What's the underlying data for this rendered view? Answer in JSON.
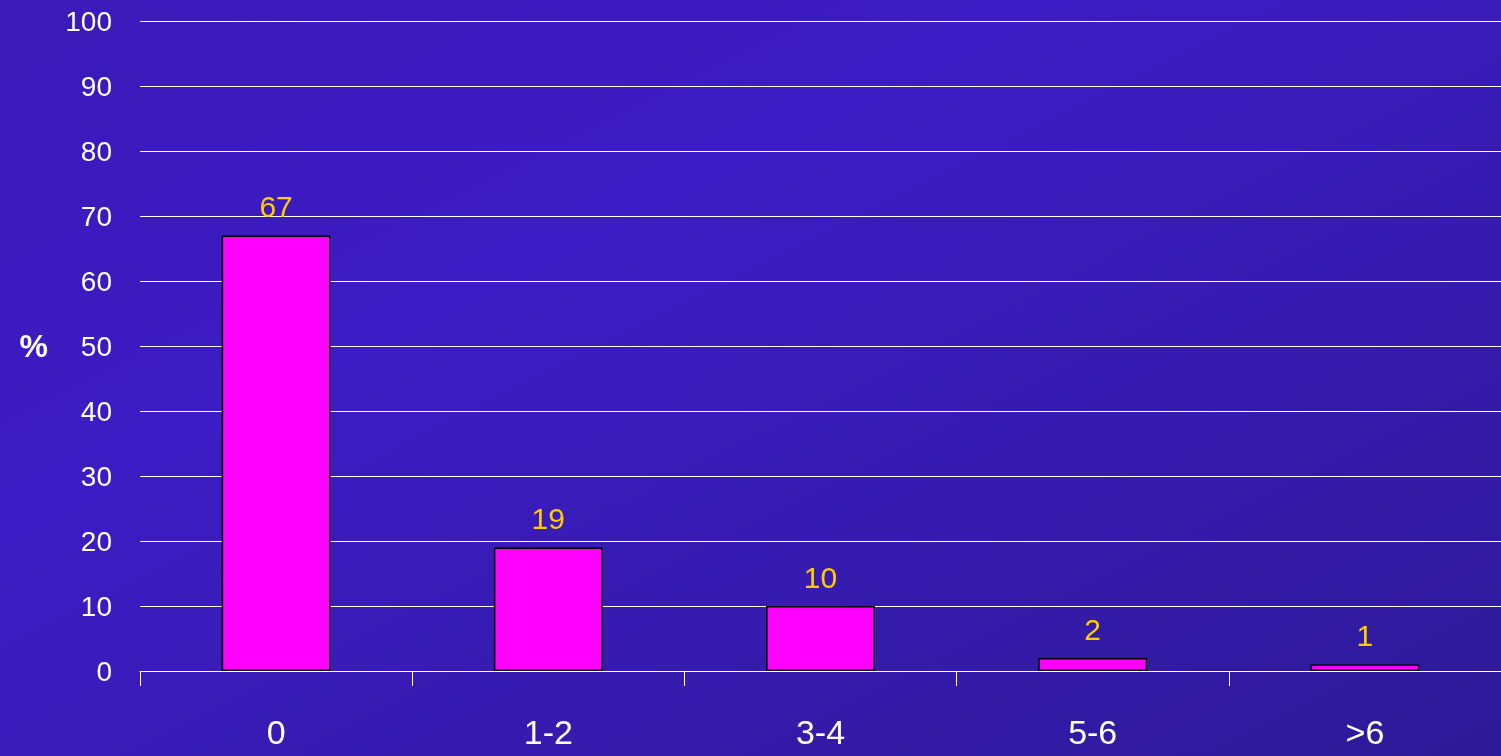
{
  "chart_data": {
    "type": "bar",
    "ylabel": "%",
    "categories": [
      "0",
      "1-2",
      "3-4",
      "5-6",
      ">6"
    ],
    "values": [
      67,
      19,
      10,
      2,
      1
    ],
    "color": "#ff00ff",
    "ylim": [
      0,
      100
    ],
    "yticks": [
      0,
      10,
      20,
      30,
      40,
      50,
      60,
      70,
      80,
      90,
      100
    ],
    "grid": "y",
    "data_labels": true
  }
}
